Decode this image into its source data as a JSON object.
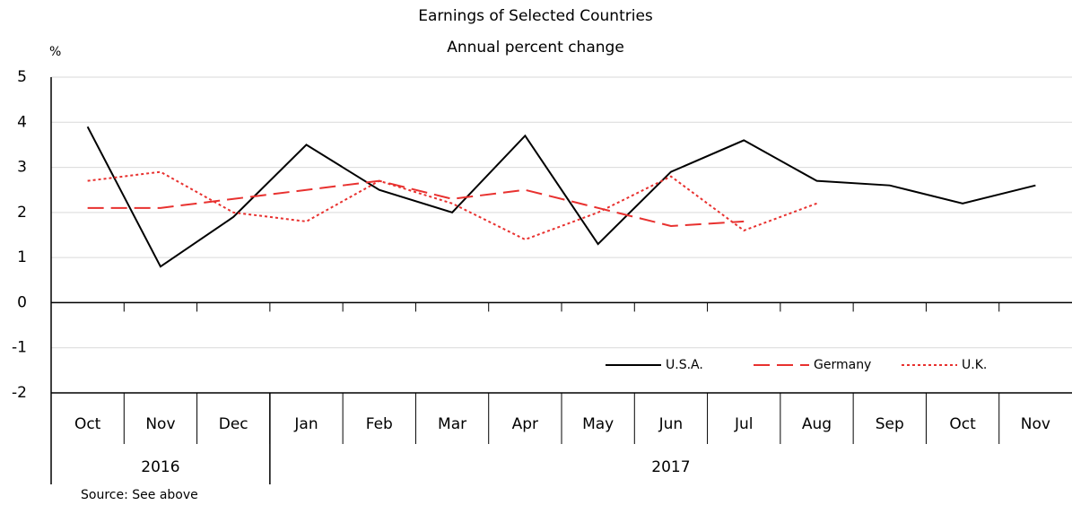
{
  "chart_data": {
    "type": "line",
    "title": "Earnings of Selected Countries",
    "subtitle": "Annual percent change",
    "y_label": "%",
    "source": "Source: See above",
    "categories": [
      "Oct",
      "Nov",
      "Dec",
      "Jan",
      "Feb",
      "Mar",
      "Apr",
      "May",
      "Jun",
      "Jul",
      "Aug",
      "Sep",
      "Oct",
      "Nov"
    ],
    "year_groups": [
      {
        "name": "2016",
        "span": 3
      },
      {
        "name": "2017",
        "span": 11
      }
    ],
    "series": [
      {
        "name": "U.S.A.",
        "color": "#000000",
        "dash": "solid",
        "values": [
          3.9,
          0.8,
          1.9,
          3.5,
          2.5,
          2.0,
          3.7,
          1.3,
          2.9,
          3.6,
          2.7,
          2.6,
          2.2,
          2.6
        ]
      },
      {
        "name": "Germany",
        "color": "#e8312f",
        "dash": "dashed",
        "values": [
          2.1,
          2.1,
          2.3,
          2.5,
          2.7,
          2.3,
          2.5,
          2.1,
          1.7,
          1.8,
          null,
          null,
          null,
          null
        ]
      },
      {
        "name": "U.K.",
        "color": "#e8312f",
        "dash": "dotted",
        "values": [
          2.7,
          2.9,
          2.0,
          1.8,
          2.7,
          2.2,
          1.4,
          2.0,
          2.8,
          1.6,
          2.2,
          null,
          null,
          null
        ]
      }
    ],
    "ylim": [
      -2,
      5
    ],
    "yticks": [
      -2,
      -1,
      0,
      1,
      2,
      3,
      4,
      5
    ],
    "grid": true,
    "legend": "lower right"
  }
}
